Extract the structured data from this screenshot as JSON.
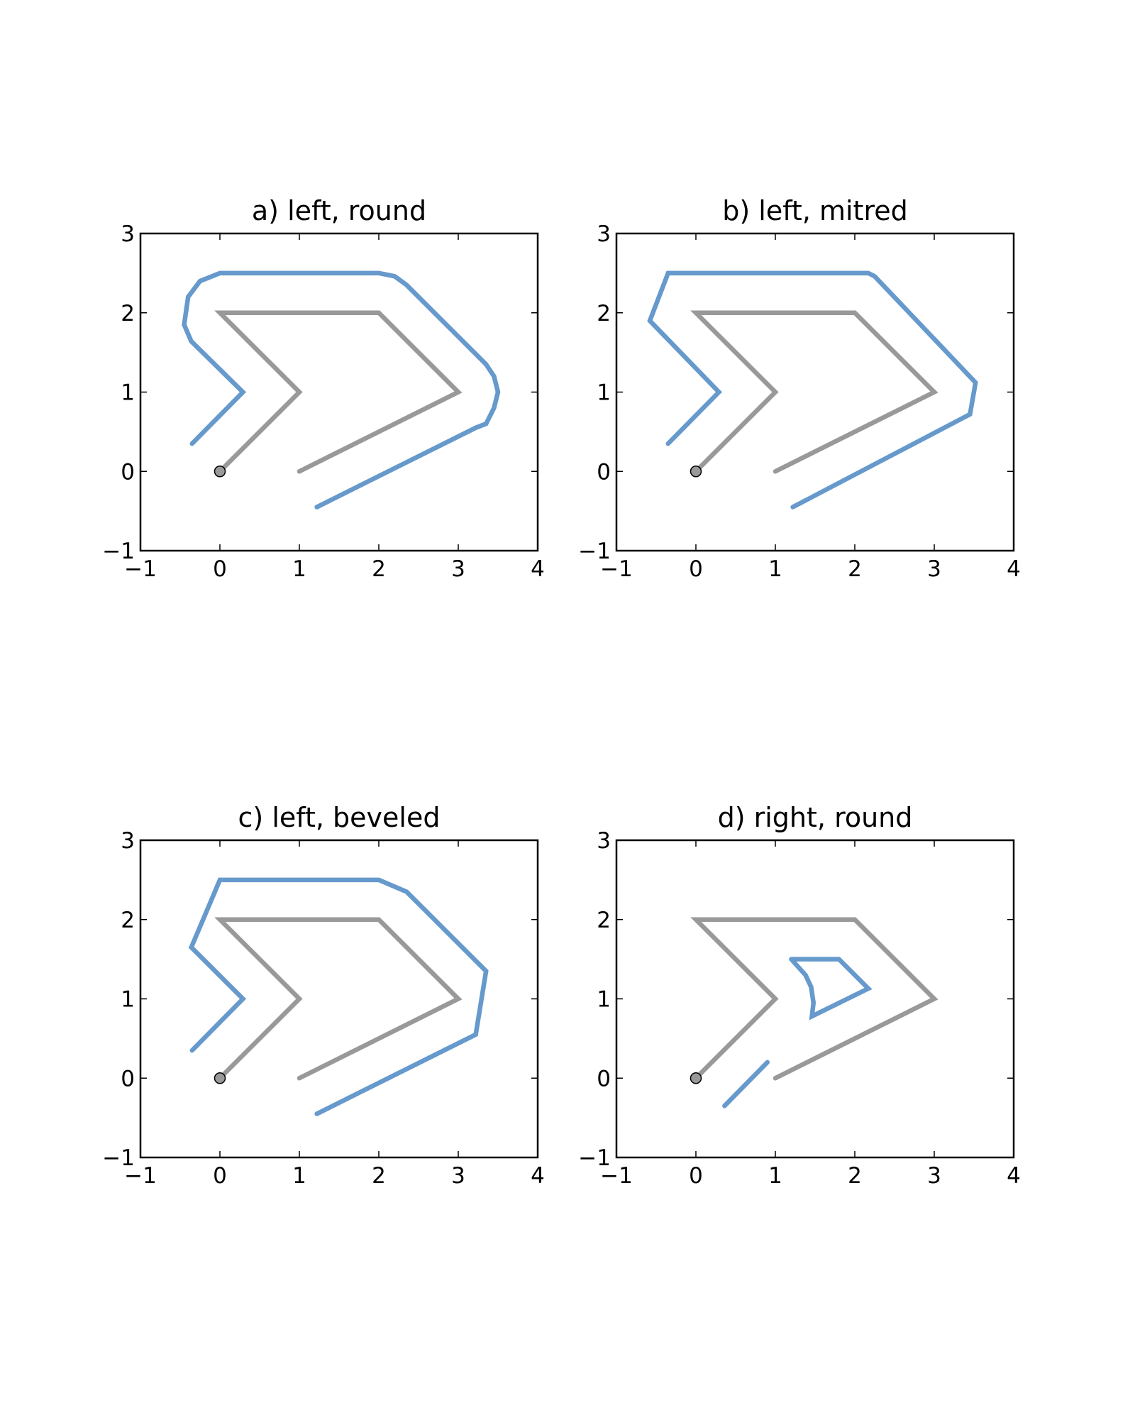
{
  "chart_data": [
    {
      "type": "line",
      "title": "a) left, round",
      "xlim": [
        -1,
        4
      ],
      "ylim": [
        -1,
        3
      ],
      "xticks": [
        "−1",
        "0",
        "1",
        "2",
        "3",
        "4"
      ],
      "yticks": [
        "−1",
        "0",
        "1",
        "2",
        "3"
      ],
      "grid": false,
      "series": [
        {
          "color": "#999999",
          "x": [
            0,
            1,
            0,
            2,
            3,
            1
          ],
          "y": [
            0,
            1,
            2,
            2,
            1,
            0
          ]
        },
        {
          "color": "#6699cc",
          "x": [
            -0.35,
            0.29,
            -0.36,
            -0.45,
            -0.4,
            -0.25,
            0,
            2,
            2.2,
            2.35,
            3.35,
            3.45,
            3.5,
            3.45,
            3.35,
            3.22,
            1.22
          ],
          "y": [
            0.35,
            1.0,
            1.64,
            1.85,
            2.2,
            2.4,
            2.5,
            2.5,
            2.46,
            2.35,
            1.35,
            1.2,
            1.0,
            0.8,
            0.6,
            0.55,
            -0.45
          ]
        }
      ],
      "markers": [
        {
          "x": 0,
          "y": 0,
          "color": "#999999"
        }
      ]
    },
    {
      "type": "line",
      "title": "b) left, mitred",
      "xlim": [
        -1,
        4
      ],
      "ylim": [
        -1,
        3
      ],
      "xticks": [
        "−1",
        "0",
        "1",
        "2",
        "3",
        "4"
      ],
      "yticks": [
        "−1",
        "0",
        "1",
        "2",
        "3"
      ],
      "grid": false,
      "series": [
        {
          "color": "#999999",
          "x": [
            0,
            1,
            0,
            2,
            3,
            1
          ],
          "y": [
            0,
            1,
            2,
            2,
            1,
            0
          ]
        },
        {
          "color": "#6699cc",
          "x": [
            -0.35,
            0.29,
            -0.58,
            -0.35,
            2.17,
            2.25,
            3.52,
            3.45,
            1.22
          ],
          "y": [
            0.35,
            1.0,
            1.9,
            2.5,
            2.5,
            2.46,
            1.12,
            0.72,
            -0.45
          ]
        }
      ],
      "markers": [
        {
          "x": 0,
          "y": 0,
          "color": "#999999"
        }
      ]
    },
    {
      "type": "line",
      "title": "c) left, beveled",
      "xlim": [
        -1,
        4
      ],
      "ylim": [
        -1,
        3
      ],
      "xticks": [
        "−1",
        "0",
        "1",
        "2",
        "3",
        "4"
      ],
      "yticks": [
        "−1",
        "0",
        "1",
        "2",
        "3"
      ],
      "grid": false,
      "series": [
        {
          "color": "#999999",
          "x": [
            0,
            1,
            0,
            2,
            3,
            1
          ],
          "y": [
            0,
            1,
            2,
            2,
            1,
            0
          ]
        },
        {
          "color": "#6699cc",
          "x": [
            -0.35,
            0.29,
            -0.36,
            0,
            2,
            2.35,
            3.35,
            3.22,
            1.22
          ],
          "y": [
            0.35,
            1.0,
            1.65,
            2.5,
            2.5,
            2.35,
            1.35,
            0.55,
            -0.45
          ]
        }
      ],
      "markers": [
        {
          "x": 0,
          "y": 0,
          "color": "#999999"
        }
      ]
    },
    {
      "type": "line",
      "title": "d) right, round",
      "xlim": [
        -1,
        4
      ],
      "ylim": [
        -1,
        3
      ],
      "xticks": [
        "−1",
        "0",
        "1",
        "2",
        "3",
        "4"
      ],
      "yticks": [
        "−1",
        "0",
        "1",
        "2",
        "3"
      ],
      "grid": false,
      "series": [
        {
          "color": "#999999",
          "x": [
            0,
            1,
            0,
            2,
            3,
            1
          ],
          "y": [
            0,
            1,
            2,
            2,
            1,
            0
          ]
        },
        {
          "color": "#6699cc",
          "x": [
            0.36,
            0.9
          ],
          "y": [
            -0.35,
            0.2
          ]
        },
        {
          "color": "#6699cc",
          "x": [
            1.2,
            1.8,
            2.17,
            1.46,
            1.48,
            1.45,
            1.38,
            1.2
          ],
          "y": [
            1.5,
            1.5,
            1.13,
            0.78,
            0.95,
            1.15,
            1.3,
            1.5
          ]
        }
      ],
      "markers": [
        {
          "x": 0,
          "y": 0,
          "color": "#999999"
        }
      ]
    }
  ]
}
